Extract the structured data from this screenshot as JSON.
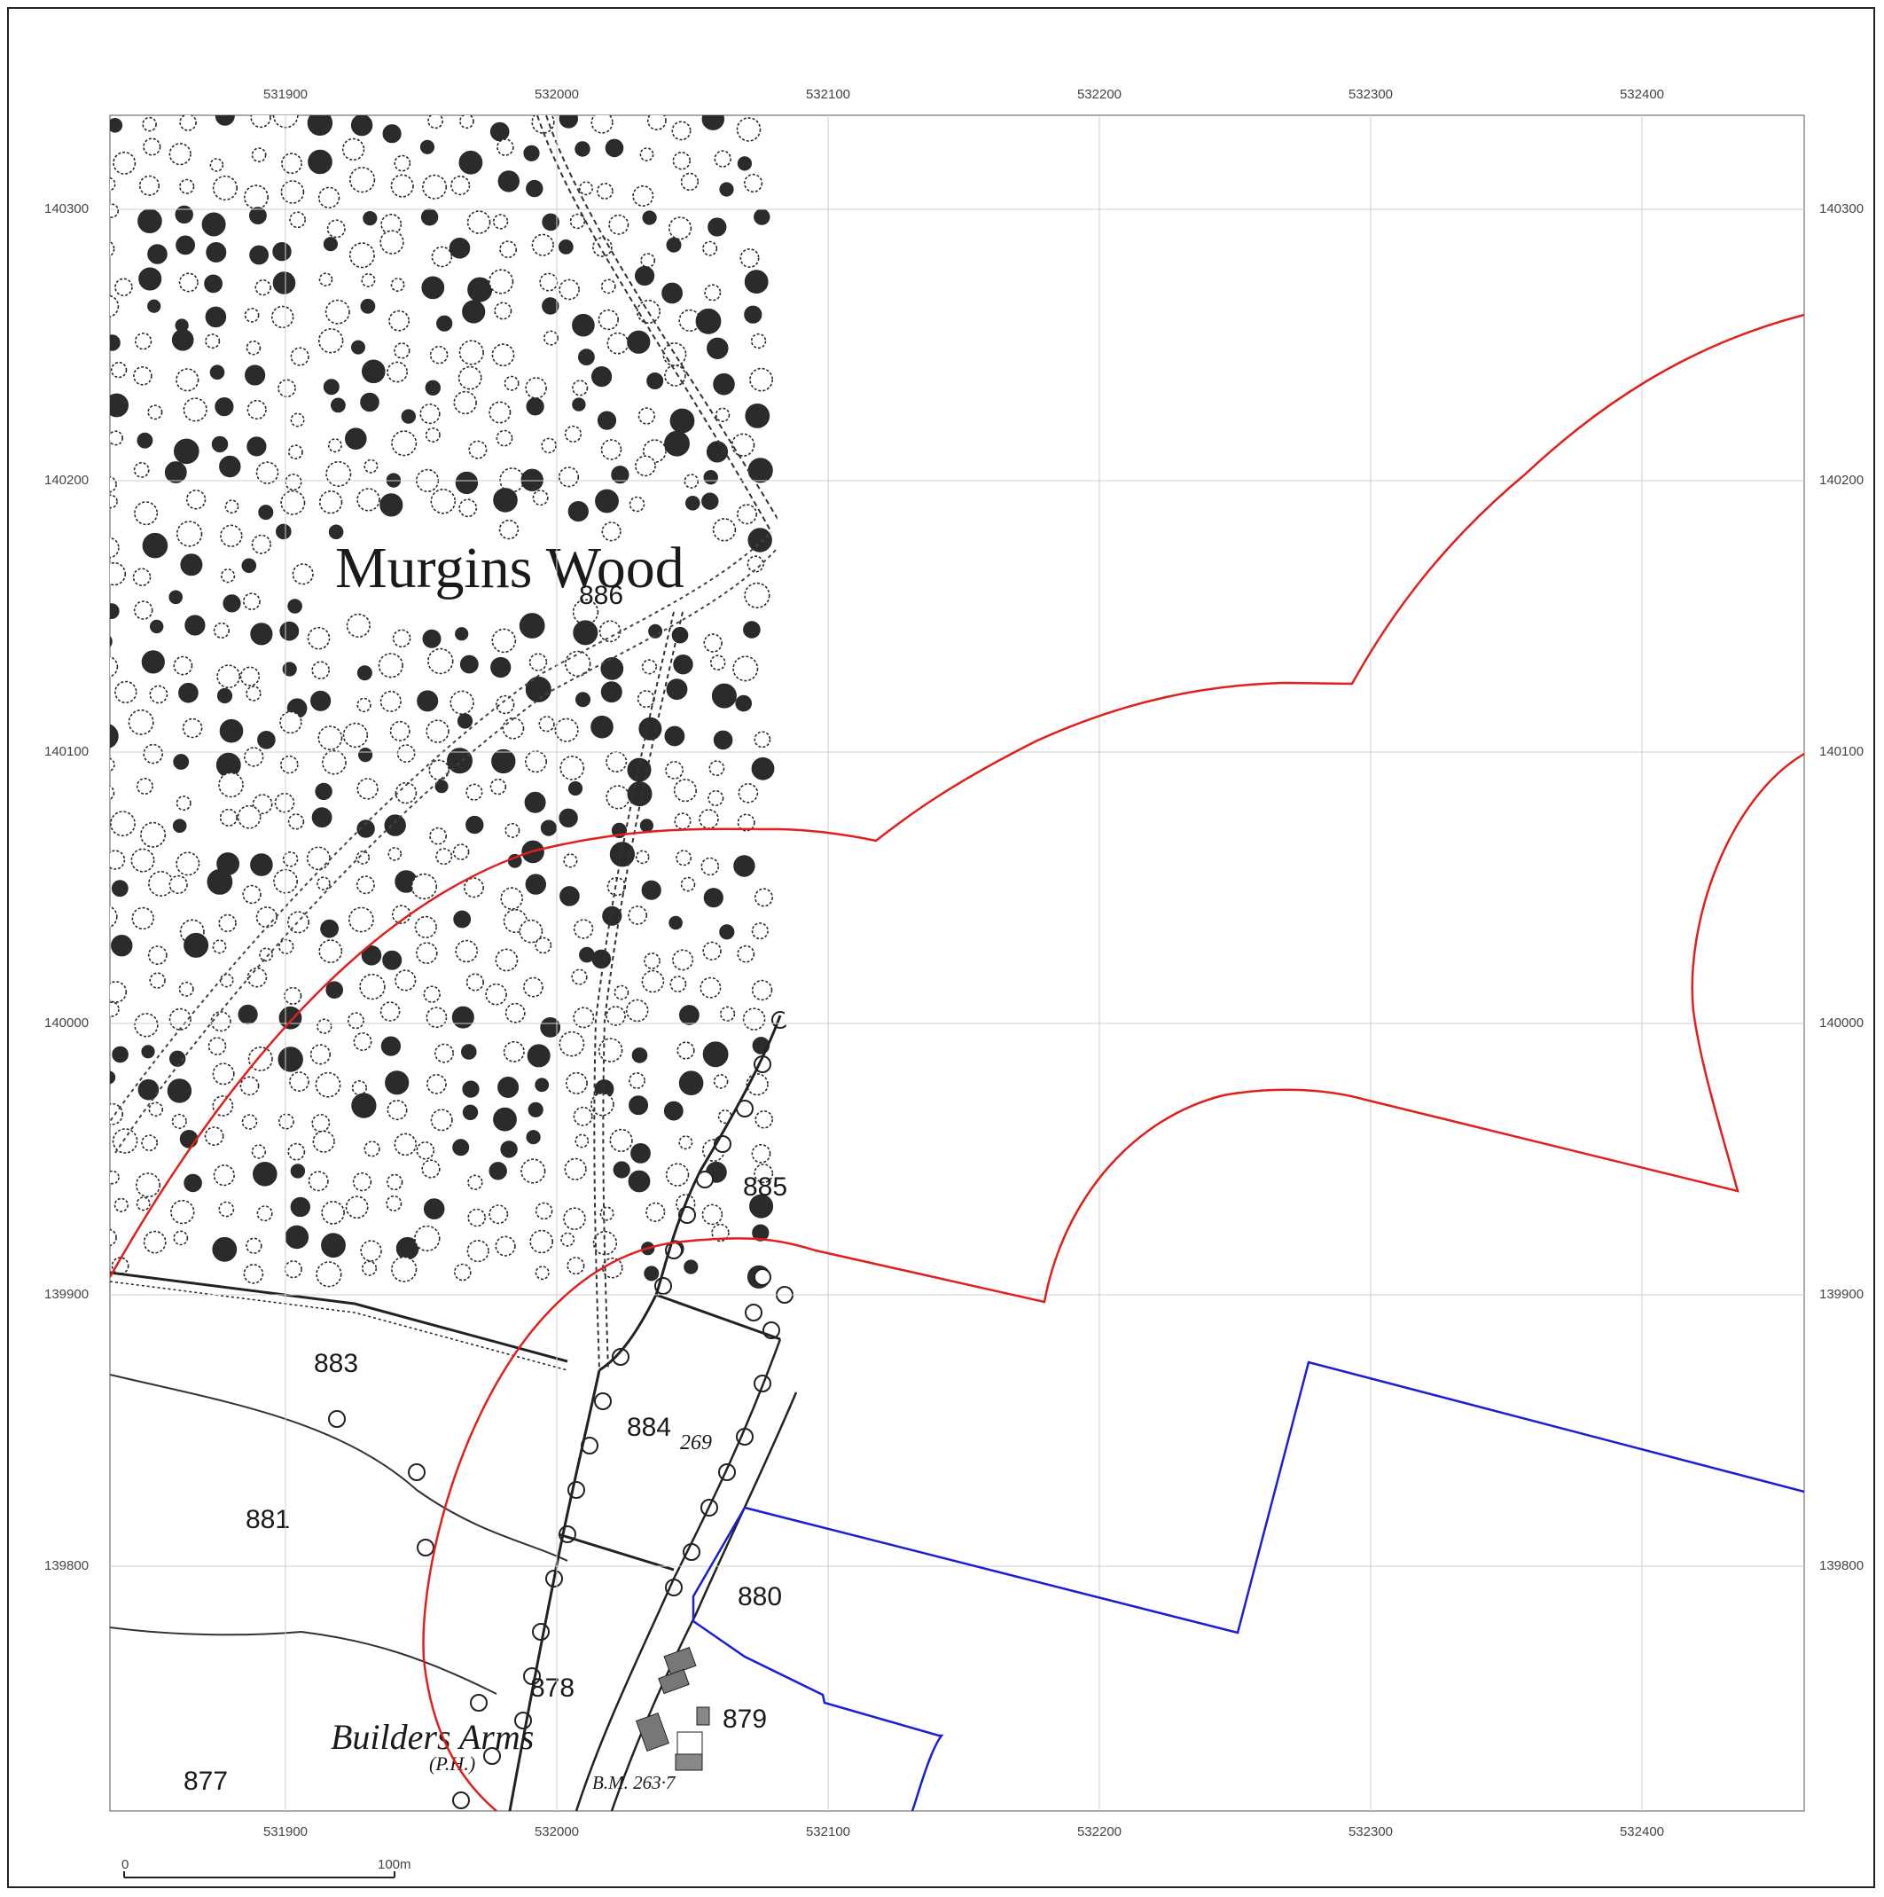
{
  "map": {
    "grid": {
      "eastings": [
        "531900",
        "532000",
        "532100",
        "532200",
        "532300",
        "532400"
      ],
      "northings": [
        "140300",
        "140200",
        "140100",
        "140000",
        "139900",
        "139800"
      ],
      "grid_color": "#cfcfcf"
    },
    "labels": {
      "wood_name": "Murgins Wood",
      "parcel_886": "886",
      "parcel_885": "885",
      "parcel_883": "883",
      "parcel_884": "884",
      "spot_height_269": "269",
      "parcel_881": "881",
      "parcel_880": "880",
      "parcel_878": "878",
      "parcel_879": "879",
      "parcel_877": "877",
      "pub_name": "Builders Arms",
      "pub_abbrev": "(P.H.)",
      "benchmark": "B.M. 263·7"
    },
    "scale_bar": {
      "start_label": "0",
      "end_label": "100m"
    },
    "overlays": {
      "red_boundary_color": "#e0201c",
      "blue_boundary_color": "#1a1fd6"
    },
    "base_map_style": "historic ordnance survey sheet, woodland tree symbols"
  }
}
